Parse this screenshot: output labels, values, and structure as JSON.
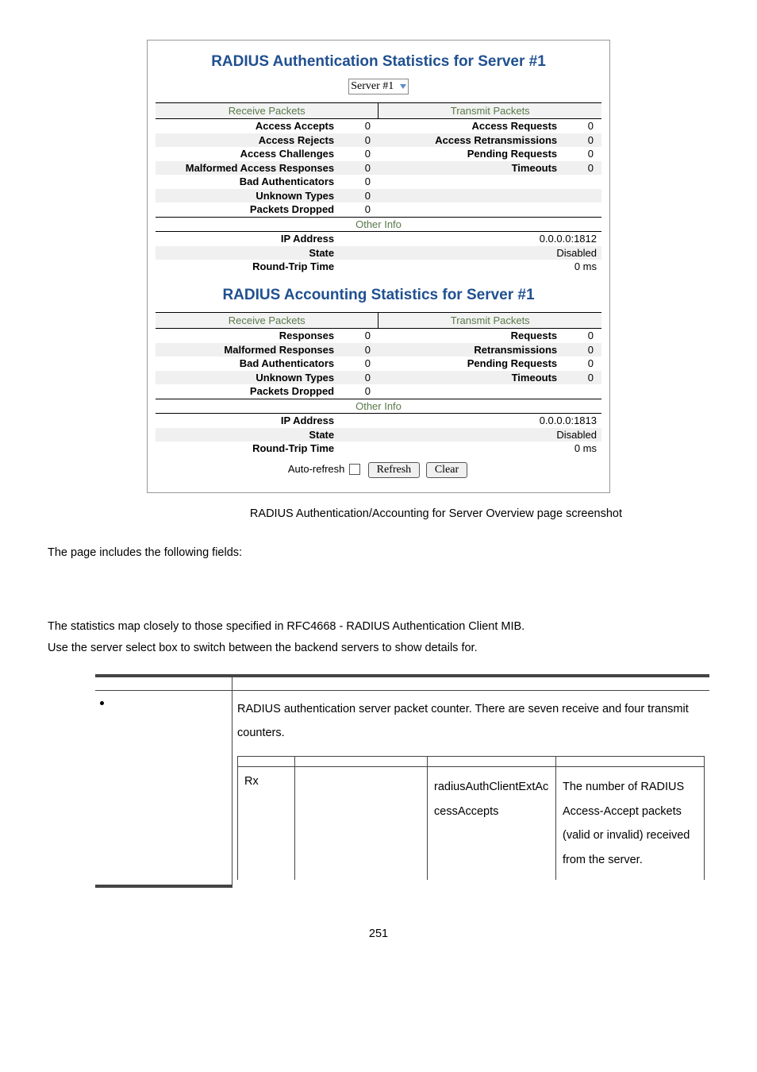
{
  "pageNumber": "251",
  "caption": "RADIUS Authentication/Accounting for Server Overview page screenshot",
  "bodyText1": "The page includes the following fields:",
  "bodyText2": "The statistics map closely to those specified in RFC4668 - RADIUS Authentication Client MIB.",
  "bodyText3": "Use the server select box to switch between the backend servers to show details for.",
  "serverSelect": "Server #1",
  "auth": {
    "title": "RADIUS Authentication Statistics for Server #1",
    "recvHeader": "Receive Packets",
    "txHeader": "Transmit Packets",
    "rows": [
      {
        "rl": "Access Accepts",
        "rv": "0",
        "tl": "Access Requests",
        "tv": "0"
      },
      {
        "rl": "Access Rejects",
        "rv": "0",
        "tl": "Access Retransmissions",
        "tv": "0"
      },
      {
        "rl": "Access Challenges",
        "rv": "0",
        "tl": "Pending Requests",
        "tv": "0"
      },
      {
        "rl": "Malformed Access Responses",
        "rv": "0",
        "tl": "Timeouts",
        "tv": "0"
      },
      {
        "rl": "Bad Authenticators",
        "rv": "0",
        "tl": "",
        "tv": ""
      },
      {
        "rl": "Unknown Types",
        "rv": "0",
        "tl": "",
        "tv": ""
      },
      {
        "rl": "Packets Dropped",
        "rv": "0",
        "tl": "",
        "tv": ""
      }
    ],
    "otherInfoHeader": "Other Info",
    "info": [
      {
        "l": "IP Address",
        "v": "0.0.0.0:1812"
      },
      {
        "l": "State",
        "v": "Disabled"
      },
      {
        "l": "Round-Trip Time",
        "v": "0 ms"
      }
    ]
  },
  "acct": {
    "title": "RADIUS Accounting Statistics for Server #1",
    "recvHeader": "Receive Packets",
    "txHeader": "Transmit Packets",
    "rows": [
      {
        "rl": "Responses",
        "rv": "0",
        "tl": "Requests",
        "tv": "0"
      },
      {
        "rl": "Malformed Responses",
        "rv": "0",
        "tl": "Retransmissions",
        "tv": "0"
      },
      {
        "rl": "Bad Authenticators",
        "rv": "0",
        "tl": "Pending Requests",
        "tv": "0"
      },
      {
        "rl": "Unknown Types",
        "rv": "0",
        "tl": "Timeouts",
        "tv": "0"
      },
      {
        "rl": "Packets Dropped",
        "rv": "0",
        "tl": "",
        "tv": ""
      }
    ],
    "otherInfoHeader": "Other Info",
    "info": [
      {
        "l": "IP Address",
        "v": "0.0.0.0:1813"
      },
      {
        "l": "State",
        "v": "Disabled"
      },
      {
        "l": "Round-Trip Time",
        "v": "0 ms"
      }
    ]
  },
  "controls": {
    "autoRefresh": "Auto-refresh",
    "refresh": "Refresh",
    "clear": "Clear"
  },
  "fieldsTable": {
    "desc": "RADIUS authentication server packet counter. There are seven receive and four transmit counters.",
    "row": {
      "dir": "Rx",
      "name": "",
      "rfc": "radiusAuthClientExtAccessAccepts",
      "descr": "The number of RADIUS Access-Accept packets (valid or invalid) received from the server."
    }
  }
}
